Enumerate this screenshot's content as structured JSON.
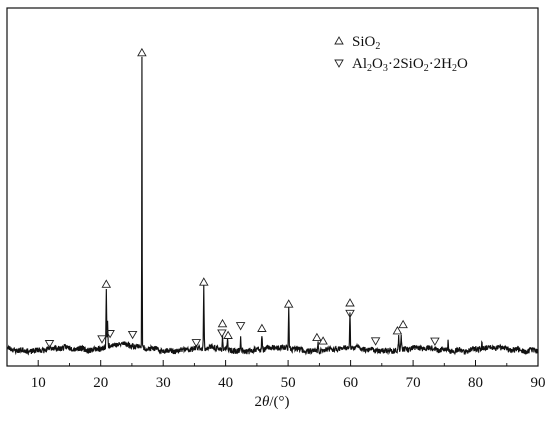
{
  "chart_data": {
    "type": "line",
    "xlabel": "2θ/(°)",
    "xlabel_parts": {
      "prefix": "2",
      "symbol": "θ",
      "suffix": "/(°)"
    },
    "ylabel": "",
    "xlim": [
      5,
      90
    ],
    "ylim": [
      0,
      100
    ],
    "x_ticks": [
      "10",
      "20",
      "30",
      "40",
      "50",
      "60",
      "70",
      "80",
      "90"
    ],
    "grid": false,
    "legend_position": "top-right",
    "series": [
      {
        "color": "#111111",
        "baseline": 1.6,
        "peaks": [
          {
            "x": 20.9,
            "y": 21.5
          },
          {
            "x": 21.1,
            "y": 9.5
          },
          {
            "x": 26.6,
            "y": 100
          },
          {
            "x": 36.5,
            "y": 22.5
          },
          {
            "x": 39.5,
            "y": 6.0
          },
          {
            "x": 40.3,
            "y": 4.5
          },
          {
            "x": 42.4,
            "y": 5.6
          },
          {
            "x": 45.8,
            "y": 6.6
          },
          {
            "x": 50.1,
            "y": 15.0
          },
          {
            "x": 54.8,
            "y": 4.0
          },
          {
            "x": 55.3,
            "y": 3.0
          },
          {
            "x": 59.9,
            "y": 13.5
          },
          {
            "x": 67.7,
            "y": 6.4
          },
          {
            "x": 68.1,
            "y": 7.0
          },
          {
            "x": 75.6,
            "y": 4.3
          },
          {
            "x": 81.0,
            "y": 3.8
          }
        ]
      }
    ],
    "legend": [
      {
        "symbol": "triangle-up",
        "text": "SiO",
        "sub": "2"
      },
      {
        "symbol": "triangle-down",
        "parts": [
          {
            "t": "Al",
            "sub": false
          },
          {
            "t": "2",
            "sub": true
          },
          {
            "t": "O",
            "sub": false
          },
          {
            "t": "3",
            "sub": true
          },
          {
            "t": "·2SiO",
            "sub": false
          },
          {
            "t": "2",
            "sub": true
          },
          {
            "t": "·2H",
            "sub": false
          },
          {
            "t": "2",
            "sub": true
          },
          {
            "t": "O",
            "sub": false
          }
        ]
      }
    ],
    "markers": [
      {
        "x": 20.9,
        "y": 23.8,
        "type": "up"
      },
      {
        "x": 26.6,
        "y": 102.8,
        "type": "up"
      },
      {
        "x": 36.5,
        "y": 24.5,
        "type": "up"
      },
      {
        "x": 39.5,
        "y": 10.3,
        "type": "up"
      },
      {
        "x": 40.4,
        "y": 6.3,
        "type": "up"
      },
      {
        "x": 45.8,
        "y": 8.7,
        "type": "up"
      },
      {
        "x": 50.1,
        "y": 17.0,
        "type": "up"
      },
      {
        "x": 54.6,
        "y": 5.6,
        "type": "up"
      },
      {
        "x": 55.6,
        "y": 4.4,
        "type": "up"
      },
      {
        "x": 59.9,
        "y": 17.4,
        "type": "up"
      },
      {
        "x": 67.5,
        "y": 7.9,
        "type": "up"
      },
      {
        "x": 68.4,
        "y": 10.0,
        "type": "up"
      },
      {
        "x": 11.8,
        "y": 3.6,
        "type": "down"
      },
      {
        "x": 20.2,
        "y": 5.2,
        "type": "down"
      },
      {
        "x": 21.5,
        "y": 7.0,
        "type": "down"
      },
      {
        "x": 25.1,
        "y": 6.7,
        "type": "down"
      },
      {
        "x": 35.3,
        "y": 3.9,
        "type": "down"
      },
      {
        "x": 39.4,
        "y": 7.2,
        "type": "down"
      },
      {
        "x": 42.4,
        "y": 9.7,
        "type": "down"
      },
      {
        "x": 59.9,
        "y": 13.9,
        "type": "down"
      },
      {
        "x": 64.0,
        "y": 4.5,
        "type": "down"
      },
      {
        "x": 73.5,
        "y": 4.4,
        "type": "down"
      }
    ]
  }
}
